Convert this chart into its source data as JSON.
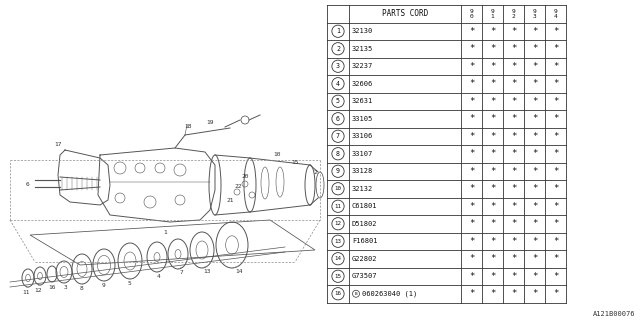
{
  "bg_color": "#ffffff",
  "diagram_note": "A121B00076",
  "table": {
    "rows": [
      {
        "num": 1,
        "code": "32130",
        "special": false
      },
      {
        "num": 2,
        "code": "32135",
        "special": false
      },
      {
        "num": 3,
        "code": "32237",
        "special": false
      },
      {
        "num": 4,
        "code": "32606",
        "special": false
      },
      {
        "num": 5,
        "code": "32631",
        "special": false
      },
      {
        "num": 6,
        "code": "33105",
        "special": false
      },
      {
        "num": 7,
        "code": "33106",
        "special": false
      },
      {
        "num": 8,
        "code": "33107",
        "special": false
      },
      {
        "num": 9,
        "code": "33128",
        "special": false
      },
      {
        "num": 10,
        "code": "32132",
        "special": false
      },
      {
        "num": 11,
        "code": "C61801",
        "special": false
      },
      {
        "num": 12,
        "code": "D51802",
        "special": false
      },
      {
        "num": 13,
        "code": "F16801",
        "special": false
      },
      {
        "num": 14,
        "code": "G22802",
        "special": false
      },
      {
        "num": 15,
        "code": "G73507",
        "special": false
      },
      {
        "num": 16,
        "code": "060263040 (1)",
        "special": true
      }
    ],
    "year_cols": [
      "9\n0",
      "9\n1",
      "9\n2",
      "9\n3",
      "9\n4"
    ]
  }
}
